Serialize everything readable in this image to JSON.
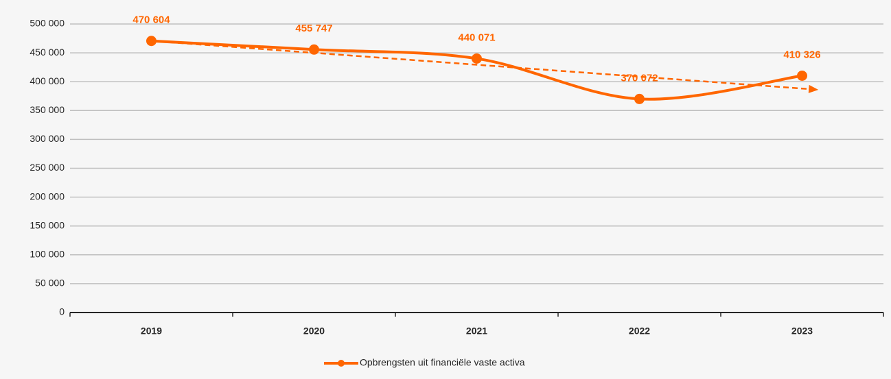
{
  "chart_data": {
    "type": "line",
    "categories": [
      "2019",
      "2020",
      "2021",
      "2022",
      "2023"
    ],
    "series": [
      {
        "name": "Opbrengsten uit financiële vaste activa",
        "color": "#ff6600",
        "values": [
          470604,
          455747,
          440071,
          370072,
          410326
        ],
        "value_labels": [
          "470 604",
          "455 747",
          "440 071",
          "370 072",
          "410 326"
        ]
      }
    ],
    "ylim": [
      0,
      500000
    ],
    "yticks": [
      {
        "value": 0,
        "label": "0"
      },
      {
        "value": 50000,
        "label": "50 000"
      },
      {
        "value": 100000,
        "label": "100 000"
      },
      {
        "value": 150000,
        "label": "150 000"
      },
      {
        "value": 200000,
        "label": "200 000"
      },
      {
        "value": 250000,
        "label": "250 000"
      },
      {
        "value": 300000,
        "label": "300 000"
      },
      {
        "value": 350000,
        "label": "350 000"
      },
      {
        "value": 400000,
        "label": "400 000"
      },
      {
        "value": 450000,
        "label": "450 000"
      },
      {
        "value": 500000,
        "label": "500 000"
      }
    ],
    "grid": true,
    "smooth": true,
    "trendline": "linear",
    "legend": "bottom"
  }
}
